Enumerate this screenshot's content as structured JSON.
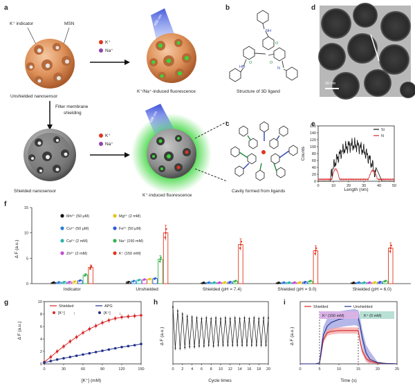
{
  "panels": {
    "a": {
      "label": "a",
      "k_indicator": "K⁺ indicator",
      "msn": "MSN",
      "unshielded": "Unshielded nanosensor",
      "shielded": "Shielded nanosensor",
      "filter": "Filter membrane shielding",
      "legend_k": "K⁺",
      "legend_na": "Na⁺",
      "nm_label": "488 nm",
      "fluor_top": "K⁺/Na⁺-induced fluorescence",
      "fluor_bottom": "K⁺-induced fluorescence"
    },
    "b": {
      "label": "b",
      "caption": "Structure of 3D ligand"
    },
    "c": {
      "label": "c",
      "caption": "Cavity formed from ligands"
    },
    "d": {
      "label": "d",
      "scale": "20 nm"
    },
    "e": {
      "label": "e",
      "xlabel": "Length (nm)",
      "ylabel": "Counts",
      "xticks": [
        "0",
        "10",
        "20",
        "30",
        "40",
        "50"
      ],
      "yticks": [
        "0",
        "20",
        "40",
        "60",
        "80",
        "100",
        "120",
        "140",
        "160"
      ],
      "legend": [
        "Si",
        "N"
      ]
    },
    "f": {
      "label": "f",
      "ylabel": "Δ F (a.u.)"
    },
    "g": {
      "label": "g",
      "legend_shielded": "Shielded",
      "legend_apg": "APG",
      "k_label": "[K⁺]",
      "xlabel": "[K⁺] (mM)",
      "ylabel": "Δ F (a.u.)",
      "xticks": [
        "0",
        "30",
        "60",
        "90",
        "120",
        "150"
      ],
      "yticks": [
        "0",
        "2",
        "4",
        "6",
        "8",
        "10"
      ]
    },
    "h": {
      "label": "h",
      "xlabel": "Cycle times",
      "ylabel": "Δ F (a.u.)",
      "xticks": [
        "0",
        "2",
        "4",
        "6",
        "8",
        "10",
        "12",
        "14",
        "16",
        "18",
        "20"
      ]
    },
    "i": {
      "label": "i",
      "legend_shielded": "Shielded",
      "legend_unshielded": "Unshielded",
      "k150": "K⁺ (150 mM)",
      "k0": "K⁺ (0 mM)",
      "xlabel": "Time (s)",
      "ylabel": "Δ F (a.u.)",
      "xticks": [
        "0",
        "5",
        "10",
        "15",
        "20",
        "25"
      ]
    }
  },
  "colors": {
    "shielded": "#d62728",
    "apg": "#1f2f8a",
    "si": "#111111",
    "n": "#d62728",
    "band_red": "#f4a5a5",
    "band_blue": "#9c9fe0",
    "k150_box": "#d9b3e6",
    "k0_box": "#b8e0d5"
  },
  "chart_data": [
    {
      "type": "bar",
      "panel": "f",
      "ylabel": "Δ F (a.u.)",
      "ylim": [
        0,
        15
      ],
      "yticks": [
        "0",
        "5",
        "10",
        "15"
      ],
      "groups": [
        "Indicator",
        "Unshielded",
        "Shielded (pH = 7.4)",
        "Shielded (pH = 9.0)",
        "Shielded (pH = 6.0)"
      ],
      "ions": [
        "Mn²⁺ (50 μM)",
        "Cu²⁺ (50 μM)",
        "Ca²⁺ (2 mM)",
        "Zn²⁺ (2 mM)",
        "Mg²⁺ (2 mM)",
        "Fe³⁺ (50 μM)",
        "Na⁺ (150 mM)",
        "K⁺ (150 mM)"
      ],
      "ion_colors": [
        "#111111",
        "#2b7bd6",
        "#2bb3a8",
        "#c24bd1",
        "#e8c21a",
        "#2f5bd9",
        "#33b34a",
        "#e2341d"
      ],
      "series": [
        {
          "name": "Mn²⁺ (50 μM)",
          "values": [
            0.2,
            0.3,
            0.15,
            0.15,
            0.15
          ]
        },
        {
          "name": "Cu²⁺ (50 μM)",
          "values": [
            0.25,
            0.5,
            0.2,
            0.2,
            0.2
          ]
        },
        {
          "name": "Ca²⁺ (2 mM)",
          "values": [
            0.3,
            0.7,
            0.2,
            0.2,
            0.2
          ]
        },
        {
          "name": "Zn²⁺ (2 mM)",
          "values": [
            0.3,
            0.8,
            0.2,
            0.2,
            0.2
          ]
        },
        {
          "name": "Mg²⁺ (2 mM)",
          "values": [
            0.4,
            0.9,
            0.25,
            0.25,
            0.25
          ]
        },
        {
          "name": "Fe³⁺ (50 μM)",
          "values": [
            0.6,
            1.0,
            0.3,
            0.3,
            0.3
          ]
        },
        {
          "name": "Na⁺ (150 mM)",
          "values": [
            1.7,
            4.8,
            0.5,
            0.5,
            0.5
          ]
        },
        {
          "name": "K⁺ (150 mM)",
          "values": [
            3.2,
            10.0,
            7.7,
            6.5,
            7.0
          ]
        }
      ]
    },
    {
      "type": "line",
      "panel": "g",
      "xlim": [
        0,
        150
      ],
      "ylim": [
        0,
        10
      ],
      "x": [
        0,
        10,
        20,
        30,
        40,
        50,
        60,
        70,
        80,
        90,
        100,
        110,
        120,
        130,
        140,
        150
      ],
      "series": [
        {
          "name": "Shielded",
          "values": [
            0.3,
            1.1,
            2.0,
            2.8,
            3.6,
            4.3,
            5.0,
            5.6,
            6.1,
            6.6,
            7.0,
            7.3,
            7.5,
            7.6,
            7.7,
            7.8
          ]
        },
        {
          "name": "APG",
          "values": [
            0.2,
            0.45,
            0.7,
            0.9,
            1.1,
            1.3,
            1.5,
            1.7,
            1.9,
            2.1,
            2.3,
            2.5,
            2.7,
            2.85,
            3.0,
            3.2
          ]
        }
      ]
    },
    {
      "type": "line",
      "panel": "h",
      "xlim": [
        0,
        20
      ],
      "ylim": [
        0,
        8
      ],
      "high": [
        7.3,
        6.8,
        6.4,
        6.1,
        6.0,
        5.9,
        5.8,
        5.9,
        5.8,
        5.9,
        5.8,
        5.9,
        5.8,
        5.9,
        5.8,
        5.9,
        5.8,
        5.9,
        5.8,
        5.9,
        5.9
      ],
      "low": [
        2.0,
        2.0,
        2.1,
        2.2,
        2.2,
        2.3,
        2.3,
        2.4,
        2.3,
        2.4,
        2.4,
        2.4,
        2.4,
        2.4,
        2.4,
        2.4,
        2.4,
        2.4,
        2.4,
        2.4,
        2.4
      ]
    },
    {
      "type": "area",
      "panel": "i",
      "xlim": [
        0,
        25
      ],
      "ylim": [
        0,
        14
      ],
      "x": [
        0,
        4,
        5,
        5.5,
        6,
        7,
        8,
        10,
        12,
        14,
        15,
        15.5,
        16,
        17,
        18,
        20,
        22,
        25
      ],
      "series": [
        {
          "name": "Shielded",
          "values": [
            0,
            0,
            0.2,
            3.0,
            5.5,
            7.0,
            7.3,
            7.5,
            7.5,
            7.5,
            7.5,
            5.0,
            3.0,
            1.2,
            0.6,
            0.2,
            0.1,
            0.0
          ],
          "band": 0.7
        },
        {
          "name": "Unshielded",
          "values": [
            0,
            0,
            0.2,
            3.5,
            6.5,
            8.5,
            9.3,
            10.0,
            10.3,
            10.5,
            10.3,
            8.5,
            6.0,
            2.5,
            1.0,
            0.3,
            0.1,
            0.0
          ],
          "band": 1.8
        }
      ]
    }
  ]
}
